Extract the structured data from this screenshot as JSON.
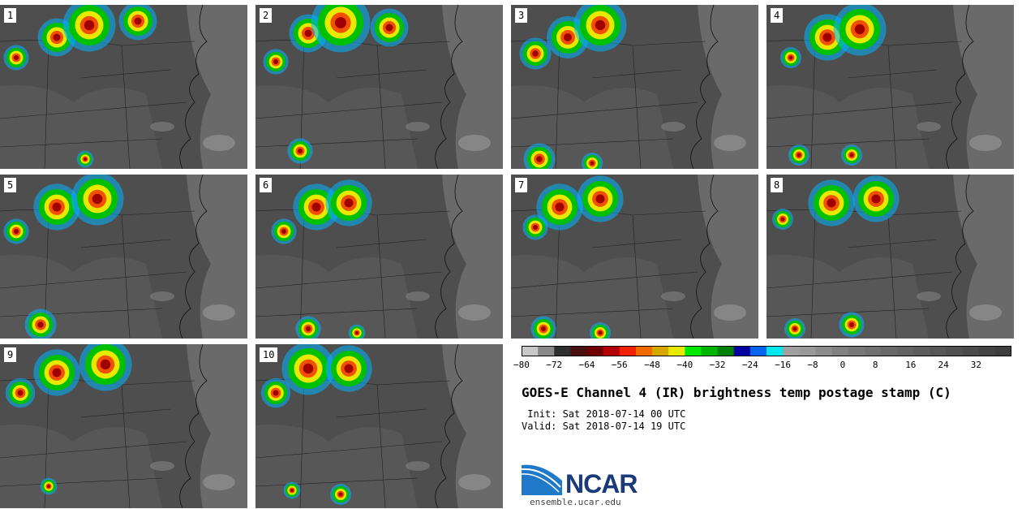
{
  "panels": [
    {
      "label": "1"
    },
    {
      "label": "2"
    },
    {
      "label": "3"
    },
    {
      "label": "4"
    },
    {
      "label": "5"
    },
    {
      "label": "6"
    },
    {
      "label": "7"
    },
    {
      "label": "8"
    },
    {
      "label": "9"
    },
    {
      "label": "10"
    }
  ],
  "colorbar": {
    "colors": [
      "#c8c8c8",
      "#888888",
      "#2e2e2e",
      "#4a1010",
      "#6e0000",
      "#b40000",
      "#f02000",
      "#f06a00",
      "#d4a800",
      "#e8e800",
      "#00e800",
      "#00b400",
      "#008000",
      "#0000a0",
      "#0064f0",
      "#00e8f0",
      "#a0a0a0",
      "#999999",
      "#8c8c8c",
      "#808080",
      "#787878",
      "#707070",
      "#686868",
      "#626262",
      "#5c5c5c",
      "#565656",
      "#505050",
      "#4a4a4a",
      "#444444",
      "#3e3e3e"
    ],
    "ticks": [
      "−80",
      "−72",
      "−64",
      "−56",
      "−48",
      "−40",
      "−32",
      "−24",
      "−16",
      "−8",
      "0",
      "8",
      "16",
      "24",
      "32"
    ]
  },
  "title": "GOES-E Channel 4 (IR) brightness temp postage stamp (C)",
  "init_text": " Init: Sat 2018-07-14 00 UTC",
  "valid_text": "Valid: Sat 2018-07-14 19 UTC",
  "logo": {
    "text": "NCAR",
    "url": "ensemble.ucar.edu"
  }
}
